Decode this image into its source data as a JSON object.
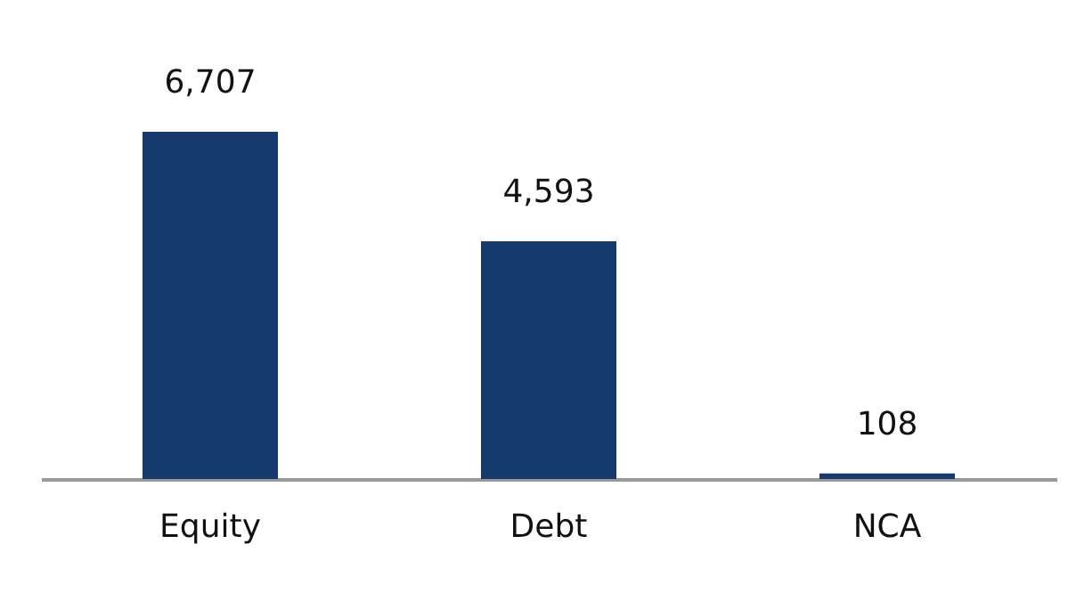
{
  "chart_data": {
    "type": "bar",
    "categories": [
      "Equity",
      "Debt",
      "NCA"
    ],
    "values": [
      6707,
      4593,
      108
    ],
    "color": "#173a6e",
    "data_labels": true,
    "value_labels": [
      "6,707",
      "4,593",
      "108"
    ]
  }
}
